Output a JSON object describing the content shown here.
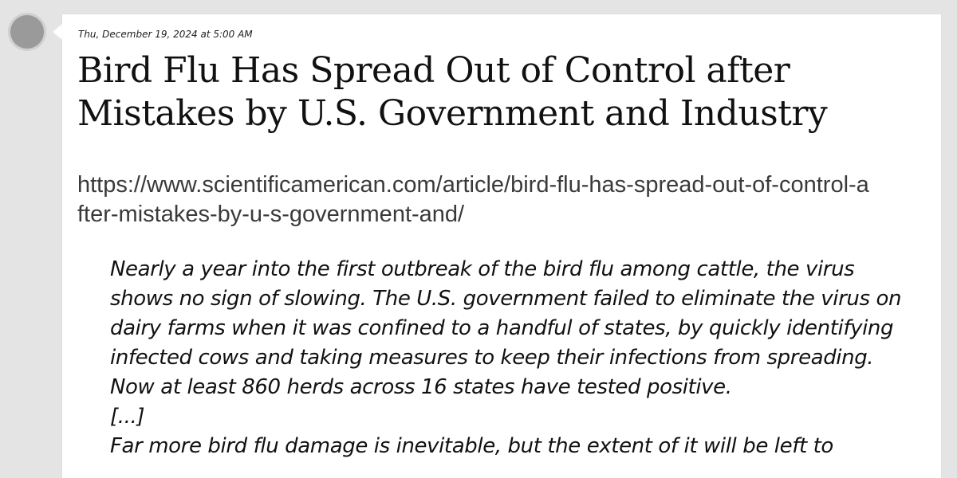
{
  "post": {
    "timestamp": "Thu, December 19, 2024 at 5:00 AM",
    "title": "Bird Flu Has Spread Out of Control after Mistakes by U.S. Government and Industry",
    "url": "https://www.scientificamerican.com/article/bird-flu-has-spread-out-of-control-after-mistakes-by-u-s-government-and/",
    "quote_paragraph_1": "Nearly a year into the first outbreak of the bird flu among cattle, the virus shows no sign of slowing. The U.S. government failed to eliminate the virus on dairy farms when it was confined to a handful of states, by quickly identifying infected cows and taking measures to keep their infections from spreading. Now at least 860 herds across 16 states have tested positive.",
    "quote_ellipsis": "[...]",
    "quote_paragraph_2": "Far more bird flu damage is inevitable, but the extent of it will be left to"
  }
}
